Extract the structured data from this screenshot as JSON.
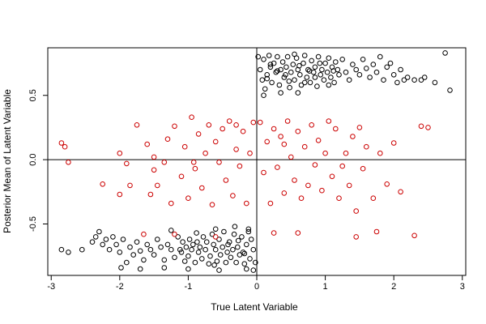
{
  "chart_data": {
    "type": "scatter",
    "title": "",
    "xlabel": "True Latent Variable",
    "ylabel": "Posterior Mean of Latent Variable",
    "xlim": [
      -3.05,
      3.05
    ],
    "ylim": [
      -0.9,
      0.87
    ],
    "xticks": [
      -3,
      -2,
      -1,
      0,
      1,
      2,
      3
    ],
    "yticks": [
      -0.5,
      0.0,
      0.5
    ],
    "ytick_labels": [
      "-0.5",
      "0.0",
      "0.5"
    ],
    "reference_lines": {
      "vertical_x": 0,
      "horizontal_y": 0
    },
    "grid": false,
    "legend": "none",
    "marker": "open-circle",
    "series_colors": [
      "#000000",
      "#cc0000"
    ],
    "series": [
      {
        "color": "#000000",
        "points": [
          [
            0.02,
            0.8
          ],
          [
            0.05,
            0.7
          ],
          [
            0.08,
            0.62
          ],
          [
            0.1,
            0.78
          ],
          [
            0.12,
            0.55
          ],
          [
            0.15,
            0.66
          ],
          [
            0.18,
            0.81
          ],
          [
            0.2,
            0.72
          ],
          [
            0.22,
            0.6
          ],
          [
            0.25,
            0.75
          ],
          [
            0.28,
            0.68
          ],
          [
            0.3,
            0.8
          ],
          [
            0.33,
            0.58
          ],
          [
            0.35,
            0.7
          ],
          [
            0.38,
            0.76
          ],
          [
            0.4,
            0.64
          ],
          [
            0.43,
            0.72
          ],
          [
            0.45,
            0.8
          ],
          [
            0.48,
            0.56
          ],
          [
            0.5,
            0.68
          ],
          [
            0.53,
            0.74
          ],
          [
            0.55,
            0.62
          ],
          [
            0.58,
            0.79
          ],
          [
            0.6,
            0.7
          ],
          [
            0.63,
            0.66
          ],
          [
            0.65,
            0.58
          ],
          [
            0.68,
            0.75
          ],
          [
            0.7,
            0.81
          ],
          [
            0.73,
            0.64
          ],
          [
            0.75,
            0.7
          ],
          [
            0.78,
            0.6
          ],
          [
            0.8,
            0.77
          ],
          [
            0.83,
            0.68
          ],
          [
            0.85,
            0.72
          ],
          [
            0.88,
            0.57
          ],
          [
            0.9,
            0.8
          ],
          [
            0.93,
            0.66
          ],
          [
            0.95,
            0.7
          ],
          [
            0.98,
            0.62
          ],
          [
            1.0,
            0.75
          ],
          [
            1.03,
            0.68
          ],
          [
            1.05,
            0.79
          ],
          [
            1.08,
            0.64
          ],
          [
            1.1,
            0.72
          ],
          [
            1.13,
            0.6
          ],
          [
            1.15,
            0.76
          ],
          [
            1.18,
            0.7
          ],
          [
            1.2,
            0.66
          ],
          [
            1.25,
            0.78
          ],
          [
            1.3,
            0.68
          ],
          [
            1.35,
            0.62
          ],
          [
            1.4,
            0.74
          ],
          [
            1.45,
            0.7
          ],
          [
            1.5,
            0.66
          ],
          [
            1.55,
            0.78
          ],
          [
            1.6,
            0.71
          ],
          [
            1.65,
            0.64
          ],
          [
            1.7,
            0.74
          ],
          [
            1.75,
            0.68
          ],
          [
            1.8,
            0.8
          ],
          [
            1.85,
            0.62
          ],
          [
            1.9,
            0.72
          ],
          [
            1.95,
            0.75
          ],
          [
            2.0,
            0.66
          ],
          [
            2.05,
            0.6
          ],
          [
            2.1,
            0.7
          ],
          [
            2.15,
            0.62
          ],
          [
            2.2,
            0.64
          ],
          [
            2.3,
            0.62
          ],
          [
            2.4,
            0.62
          ],
          [
            2.45,
            0.64
          ],
          [
            2.6,
            0.6
          ],
          [
            2.75,
            0.83
          ],
          [
            2.82,
            0.54
          ],
          [
            0.1,
            0.5
          ],
          [
            0.35,
            0.52
          ],
          [
            0.6,
            0.52
          ],
          [
            0.2,
            0.74
          ],
          [
            0.42,
            0.66
          ],
          [
            0.55,
            0.82
          ],
          [
            0.7,
            0.6
          ],
          [
            0.85,
            0.64
          ],
          [
            1.05,
            0.58
          ],
          [
            0.15,
            0.63
          ],
          [
            0.3,
            0.69
          ],
          [
            0.47,
            0.61
          ],
          [
            0.62,
            0.73
          ],
          [
            0.77,
            0.69
          ],
          [
            0.92,
            0.75
          ],
          [
            1.12,
            0.69
          ],
          [
            -0.02,
            -0.8
          ],
          [
            -0.05,
            -0.7
          ],
          [
            -0.08,
            -0.62
          ],
          [
            -0.1,
            -0.77
          ],
          [
            -0.12,
            -0.56
          ],
          [
            -0.15,
            -0.66
          ],
          [
            -0.18,
            -0.81
          ],
          [
            -0.2,
            -0.72
          ],
          [
            -0.22,
            -0.6
          ],
          [
            -0.25,
            -0.74
          ],
          [
            -0.28,
            -0.68
          ],
          [
            -0.3,
            -0.8
          ],
          [
            -0.33,
            -0.58
          ],
          [
            -0.35,
            -0.7
          ],
          [
            -0.38,
            -0.76
          ],
          [
            -0.4,
            -0.64
          ],
          [
            -0.43,
            -0.72
          ],
          [
            -0.45,
            -0.8
          ],
          [
            -0.48,
            -0.56
          ],
          [
            -0.5,
            -0.68
          ],
          [
            -0.53,
            -0.74
          ],
          [
            -0.55,
            -0.62
          ],
          [
            -0.58,
            -0.79
          ],
          [
            -0.6,
            -0.7
          ],
          [
            -0.63,
            -0.66
          ],
          [
            -0.65,
            -0.58
          ],
          [
            -0.68,
            -0.75
          ],
          [
            -0.7,
            -0.81
          ],
          [
            -0.73,
            -0.64
          ],
          [
            -0.75,
            -0.7
          ],
          [
            -0.78,
            -0.6
          ],
          [
            -0.8,
            -0.77
          ],
          [
            -0.83,
            -0.68
          ],
          [
            -0.85,
            -0.72
          ],
          [
            -0.88,
            -0.57
          ],
          [
            -0.9,
            -0.8
          ],
          [
            -0.93,
            -0.66
          ],
          [
            -0.95,
            -0.7
          ],
          [
            -0.98,
            -0.62
          ],
          [
            -1.0,
            -0.75
          ],
          [
            -1.03,
            -0.68
          ],
          [
            -1.05,
            -0.79
          ],
          [
            -1.08,
            -0.64
          ],
          [
            -1.1,
            -0.72
          ],
          [
            -1.15,
            -0.6
          ],
          [
            -1.2,
            -0.76
          ],
          [
            -1.25,
            -0.7
          ],
          [
            -1.3,
            -0.66
          ],
          [
            -1.35,
            -0.78
          ],
          [
            -1.4,
            -0.68
          ],
          [
            -1.45,
            -0.62
          ],
          [
            -1.5,
            -0.74
          ],
          [
            -1.55,
            -0.7
          ],
          [
            -1.6,
            -0.66
          ],
          [
            -1.65,
            -0.78
          ],
          [
            -1.7,
            -0.71
          ],
          [
            -1.75,
            -0.64
          ],
          [
            -1.8,
            -0.74
          ],
          [
            -1.85,
            -0.68
          ],
          [
            -1.9,
            -0.8
          ],
          [
            -1.95,
            -0.62
          ],
          [
            -2.0,
            -0.72
          ],
          [
            -2.05,
            -0.66
          ],
          [
            -2.1,
            -0.6
          ],
          [
            -2.15,
            -0.7
          ],
          [
            -2.2,
            -0.62
          ],
          [
            -2.25,
            -0.66
          ],
          [
            -2.35,
            -0.6
          ],
          [
            -2.4,
            -0.64
          ],
          [
            -2.55,
            -0.7
          ],
          [
            -2.75,
            -0.72
          ],
          [
            -2.85,
            -0.7
          ],
          [
            -2.3,
            -0.56
          ],
          [
            -1.98,
            -0.84
          ],
          [
            -1.7,
            -0.85
          ],
          [
            -1.35,
            -0.84
          ],
          [
            -1.0,
            -0.85
          ],
          [
            -0.55,
            -0.86
          ],
          [
            -0.15,
            -0.85
          ],
          [
            -0.05,
            -0.86
          ],
          [
            -0.12,
            -0.54
          ],
          [
            -0.32,
            -0.52
          ],
          [
            -0.6,
            -0.54
          ],
          [
            -1.25,
            -0.55
          ],
          [
            -0.18,
            -0.73
          ],
          [
            -0.42,
            -0.66
          ],
          [
            -0.62,
            -0.82
          ],
          [
            -0.87,
            -0.64
          ],
          [
            -1.12,
            -0.7
          ],
          [
            -0.27,
            -0.63
          ]
        ]
      },
      {
        "color": "#cc0000",
        "points": [
          [
            -2.85,
            0.13
          ],
          [
            -2.8,
            0.1
          ],
          [
            -2.75,
            -0.02
          ],
          [
            -2.25,
            -0.19
          ],
          [
            -2.0,
            -0.27
          ],
          [
            -1.9,
            -0.03
          ],
          [
            -1.75,
            0.27
          ],
          [
            -1.6,
            0.12
          ],
          [
            -1.55,
            -0.27
          ],
          [
            -1.5,
            0.02
          ],
          [
            -1.45,
            -0.2
          ],
          [
            -1.35,
            -0.02
          ],
          [
            -1.3,
            0.16
          ],
          [
            -1.25,
            -0.34
          ],
          [
            -1.2,
            0.26
          ],
          [
            -1.1,
            -0.13
          ],
          [
            -1.05,
            0.1
          ],
          [
            -1.0,
            -0.3
          ],
          [
            -0.95,
            0.33
          ],
          [
            -0.9,
            -0.07
          ],
          [
            -0.85,
            0.2
          ],
          [
            -0.8,
            -0.22
          ],
          [
            -0.75,
            0.05
          ],
          [
            -0.7,
            0.27
          ],
          [
            -0.65,
            -0.35
          ],
          [
            -0.6,
            0.14
          ],
          [
            -0.55,
            -0.02
          ],
          [
            -0.5,
            0.24
          ],
          [
            -0.45,
            -0.16
          ],
          [
            -0.4,
            0.3
          ],
          [
            -0.35,
            -0.28
          ],
          [
            -0.3,
            0.08
          ],
          [
            -0.25,
            -0.05
          ],
          [
            -0.2,
            0.22
          ],
          [
            -0.15,
            -0.34
          ],
          [
            -0.1,
            0.05
          ],
          [
            -0.05,
            0.29
          ],
          [
            0.05,
            0.29
          ],
          [
            0.1,
            -0.1
          ],
          [
            0.15,
            0.14
          ],
          [
            0.2,
            -0.34
          ],
          [
            0.25,
            0.24
          ],
          [
            0.3,
            -0.06
          ],
          [
            0.35,
            0.18
          ],
          [
            0.4,
            -0.26
          ],
          [
            0.45,
            0.3
          ],
          [
            0.5,
            0.02
          ],
          [
            0.55,
            -0.16
          ],
          [
            0.6,
            0.22
          ],
          [
            0.65,
            -0.3
          ],
          [
            0.7,
            0.1
          ],
          [
            0.75,
            -0.2
          ],
          [
            0.8,
            0.27
          ],
          [
            0.85,
            -0.04
          ],
          [
            0.9,
            0.15
          ],
          [
            0.95,
            -0.24
          ],
          [
            1.0,
            0.05
          ],
          [
            1.05,
            0.3
          ],
          [
            1.1,
            -0.13
          ],
          [
            1.15,
            0.24
          ],
          [
            1.2,
            -0.3
          ],
          [
            1.3,
            0.05
          ],
          [
            1.35,
            -0.2
          ],
          [
            1.4,
            0.18
          ],
          [
            1.45,
            -0.4
          ],
          [
            1.5,
            0.25
          ],
          [
            1.55,
            -0.07
          ],
          [
            1.6,
            0.1
          ],
          [
            1.7,
            -0.3
          ],
          [
            1.75,
            -0.56
          ],
          [
            1.8,
            0.05
          ],
          [
            1.9,
            -0.19
          ],
          [
            2.0,
            0.13
          ],
          [
            2.1,
            -0.25
          ],
          [
            2.3,
            -0.59
          ],
          [
            2.4,
            0.26
          ],
          [
            2.5,
            0.25
          ],
          [
            1.45,
            -0.6
          ],
          [
            -1.65,
            -0.58
          ],
          [
            -1.2,
            -0.58
          ],
          [
            -0.6,
            -0.6
          ],
          [
            0.25,
            -0.57
          ],
          [
            0.6,
            -0.57
          ],
          [
            -0.92,
            -0.02
          ],
          [
            -0.3,
            0.27
          ],
          [
            0.4,
            0.12
          ],
          [
            1.25,
            -0.05
          ],
          [
            -2.0,
            0.05
          ],
          [
            -1.85,
            -0.2
          ],
          [
            -1.5,
            -0.08
          ]
        ]
      }
    ]
  }
}
